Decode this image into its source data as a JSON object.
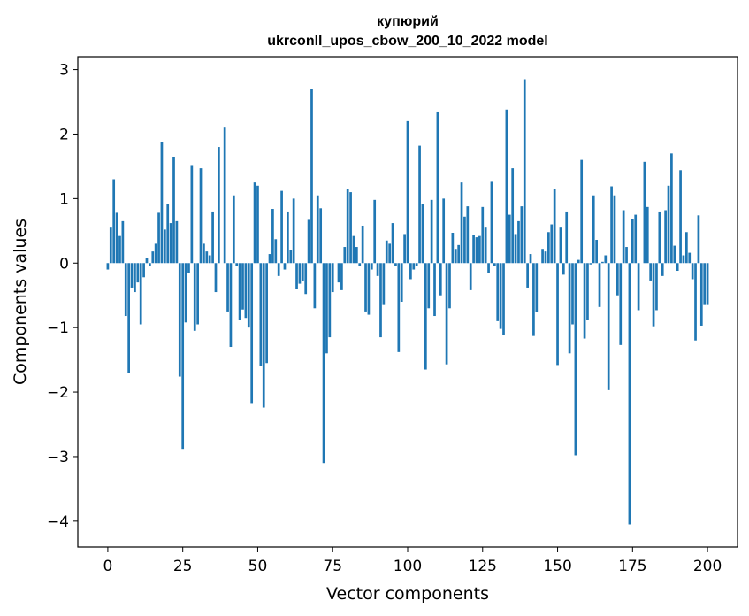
{
  "chart_data": {
    "type": "bar",
    "title_line1": "купюрий",
    "title_line2": "ukrconll_upos_cbow_200_10_2022 model",
    "xlabel": "Vector components",
    "ylabel": "Components values",
    "xlim": [
      -10,
      210
    ],
    "ylim": [
      -4.4,
      3.2
    ],
    "xticks": [
      0,
      25,
      50,
      75,
      100,
      125,
      150,
      175,
      200
    ],
    "yticks": [
      -4,
      -3,
      -2,
      -1,
      0,
      1,
      2,
      3
    ],
    "ytick_labels": [
      "−4",
      "−3",
      "−2",
      "−1",
      "0",
      "1",
      "2",
      "3"
    ],
    "bar_color": "#1f77b4",
    "values": [
      -0.1,
      0.55,
      1.3,
      0.78,
      0.42,
      0.65,
      -0.82,
      -1.7,
      -0.38,
      -0.45,
      -0.3,
      -0.95,
      -0.22,
      0.08,
      -0.05,
      0.18,
      0.3,
      0.78,
      1.88,
      0.52,
      0.92,
      0.62,
      1.65,
      0.65,
      -1.76,
      -2.88,
      -0.92,
      -0.15,
      1.52,
      -1.05,
      -0.95,
      1.47,
      0.3,
      0.18,
      0.12,
      0.8,
      -0.45,
      1.8,
      0.0,
      2.1,
      -0.75,
      -1.3,
      1.05,
      -0.05,
      -0.88,
      -0.72,
      -0.85,
      -1.0,
      -2.17,
      1.25,
      1.2,
      -1.6,
      -2.24,
      -1.55,
      0.14,
      0.84,
      0.37,
      -0.2,
      1.12,
      -0.1,
      0.8,
      0.2,
      1.0,
      -0.4,
      -0.32,
      -0.28,
      -0.48,
      0.67,
      2.7,
      -0.7,
      1.05,
      0.85,
      -3.1,
      -1.4,
      -1.15,
      -0.45,
      0.0,
      -0.3,
      -0.42,
      0.25,
      1.15,
      1.1,
      0.42,
      0.25,
      -0.05,
      0.58,
      -0.75,
      -0.8,
      -0.1,
      0.98,
      -0.2,
      -1.15,
      -0.65,
      0.35,
      0.3,
      0.62,
      -0.05,
      -1.38,
      -0.6,
      0.45,
      2.2,
      -0.25,
      -0.1,
      -0.05,
      1.82,
      0.92,
      -1.65,
      -0.7,
      0.98,
      -0.82,
      2.35,
      -0.5,
      1.0,
      -1.57,
      -0.7,
      0.47,
      0.22,
      0.28,
      1.25,
      0.72,
      0.88,
      -0.42,
      0.43,
      0.4,
      0.42,
      0.87,
      0.55,
      -0.15,
      1.26,
      -0.05,
      -0.9,
      -1.02,
      -1.12,
      2.38,
      0.75,
      1.47,
      0.45,
      0.65,
      0.88,
      2.85,
      -0.38,
      0.14,
      -1.13,
      -0.76,
      0.0,
      0.22,
      0.18,
      0.48,
      0.6,
      1.15,
      -1.58,
      0.55,
      -0.18,
      0.8,
      -1.4,
      -0.95,
      -2.98,
      0.05,
      1.6,
      -1.17,
      -0.88,
      -0.02,
      1.05,
      0.36,
      -0.68,
      0.02,
      0.12,
      -1.97,
      1.19,
      1.05,
      -0.5,
      -1.27,
      0.82,
      0.25,
      -4.05,
      0.68,
      0.75,
      -0.73,
      0.0,
      1.57,
      0.87,
      -0.27,
      -0.98,
      -0.73,
      0.8,
      -0.2,
      0.82,
      1.2,
      1.7,
      0.27,
      -0.12,
      1.44,
      0.12,
      0.48,
      0.16,
      -0.25,
      -1.2,
      0.74,
      -0.97,
      -0.65,
      -0.65
    ]
  }
}
